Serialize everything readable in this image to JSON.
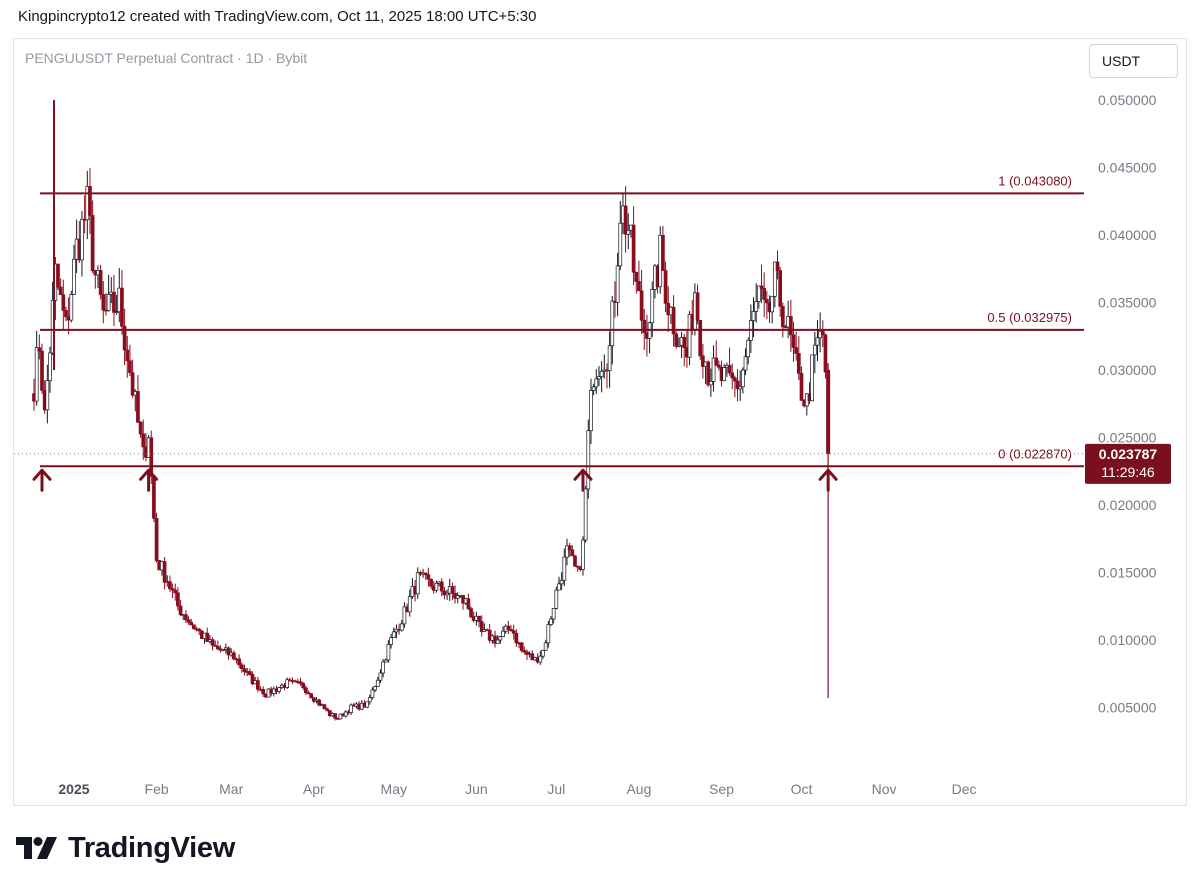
{
  "header": {
    "text": "Kingpincrypto12 created with TradingView.com, Oct 11, 2025 18:00 UTC+5:30"
  },
  "symbol_title": "PENGUUSDT Perpetual Contract · 1D · Bybit",
  "currency_label": "USDT",
  "brand": {
    "name": "TradingView",
    "logo_icon": "tradingview-logo-icon"
  },
  "colors": {
    "level_line": "#7b0f1e",
    "candle_up": "#ffffff",
    "candle_down": "#880e1f",
    "candle_outline": "#131722",
    "axis_text": "#787b86",
    "price_label_bg": "#7b0f1e"
  },
  "chart_data": {
    "type": "candlestick",
    "title": "PENGUUSDT Perpetual Contract · 1D · Bybit",
    "ylim": [
      0.0,
      0.052
    ],
    "y_ticks": [
      "0.050000",
      "0.045000",
      "0.040000",
      "0.035000",
      "0.030000",
      "0.025000",
      "0.020000",
      "0.015000",
      "0.010000",
      "0.005000"
    ],
    "x_ticks": [
      "2025",
      "Feb",
      "Mar",
      "Apr",
      "May",
      "Jun",
      "Jul",
      "Aug",
      "Sep",
      "Oct",
      "Nov",
      "Dec"
    ],
    "x_domain": [
      "2024-12-17",
      "2025-12-31"
    ],
    "x_tick_dates": [
      "2025-01-01",
      "2025-02-01",
      "2025-03-01",
      "2025-04-01",
      "2025-05-01",
      "2025-06-01",
      "2025-07-01",
      "2025-08-01",
      "2025-09-01",
      "2025-10-01",
      "2025-11-01",
      "2025-12-01"
    ],
    "grid": false,
    "levels": [
      {
        "label": "1 (0.043080)",
        "value": 0.04308
      },
      {
        "label": "0.5 (0.032975)",
        "value": 0.032975
      },
      {
        "label": "0 (0.022870)",
        "value": 0.02287
      }
    ],
    "current_price": {
      "value": 0.023787,
      "label": "0.023787",
      "countdown": "11:29:46"
    },
    "support_arrows": [
      "2024-12-19",
      "2025-01-29",
      "2025-07-11",
      "2025-10-11"
    ],
    "anchors": [
      [
        "2024-12-17",
        0.029
      ],
      [
        "2024-12-19",
        0.032
      ],
      [
        "2024-12-21",
        0.0265
      ],
      [
        "2024-12-25",
        0.037
      ],
      [
        "2024-12-29",
        0.033
      ],
      [
        "2025-01-02",
        0.039
      ],
      [
        "2025-01-06",
        0.042
      ],
      [
        "2025-01-09",
        0.037
      ],
      [
        "2025-01-12",
        0.034
      ],
      [
        "2025-01-18",
        0.035
      ],
      [
        "2025-01-22",
        0.03
      ],
      [
        "2025-01-25",
        0.026
      ],
      [
        "2025-01-27",
        0.0235
      ],
      [
        "2025-01-29",
        0.0255
      ],
      [
        "2025-01-30",
        0.022
      ],
      [
        "2025-02-01",
        0.016
      ],
      [
        "2025-02-05",
        0.0145
      ],
      [
        "2025-02-09",
        0.0125
      ],
      [
        "2025-02-14",
        0.0112
      ],
      [
        "2025-02-22",
        0.0095
      ],
      [
        "2025-03-02",
        0.0088
      ],
      [
        "2025-03-08",
        0.0072
      ],
      [
        "2025-03-14",
        0.006
      ],
      [
        "2025-03-22",
        0.0068
      ],
      [
        "2025-03-28",
        0.0066
      ],
      [
        "2025-04-02",
        0.0055
      ],
      [
        "2025-04-07",
        0.0045
      ],
      [
        "2025-04-10",
        0.0042
      ],
      [
        "2025-04-15",
        0.005
      ],
      [
        "2025-04-21",
        0.0052
      ],
      [
        "2025-04-25",
        0.0072
      ],
      [
        "2025-04-30",
        0.01
      ],
      [
        "2025-05-05",
        0.012
      ],
      [
        "2025-05-10",
        0.0145
      ],
      [
        "2025-05-16",
        0.014
      ],
      [
        "2025-05-22",
        0.0135
      ],
      [
        "2025-05-28",
        0.0128
      ],
      [
        "2025-06-03",
        0.0105
      ],
      [
        "2025-06-09",
        0.01
      ],
      [
        "2025-06-14",
        0.011
      ],
      [
        "2025-06-18",
        0.0092
      ],
      [
        "2025-06-23",
        0.0085
      ],
      [
        "2025-06-26",
        0.0092
      ],
      [
        "2025-07-01",
        0.0135
      ],
      [
        "2025-07-05",
        0.0165
      ],
      [
        "2025-07-09",
        0.0148
      ],
      [
        "2025-07-11",
        0.017
      ],
      [
        "2025-07-13",
        0.025
      ],
      [
        "2025-07-15",
        0.03
      ],
      [
        "2025-07-18",
        0.031
      ],
      [
        "2025-07-21",
        0.0315
      ],
      [
        "2025-07-23",
        0.036
      ],
      [
        "2025-07-25",
        0.042
      ],
      [
        "2025-07-28",
        0.0405
      ],
      [
        "2025-07-31",
        0.036
      ],
      [
        "2025-08-03",
        0.033
      ],
      [
        "2025-08-06",
        0.035
      ],
      [
        "2025-08-09",
        0.0385
      ],
      [
        "2025-08-12",
        0.035
      ],
      [
        "2025-08-15",
        0.033
      ],
      [
        "2025-08-19",
        0.031
      ],
      [
        "2025-08-22",
        0.036
      ],
      [
        "2025-08-24",
        0.0325
      ],
      [
        "2025-08-27",
        0.03
      ],
      [
        "2025-08-31",
        0.0295
      ],
      [
        "2025-09-04",
        0.029
      ],
      [
        "2025-09-08",
        0.029
      ],
      [
        "2025-09-12",
        0.033
      ],
      [
        "2025-09-15",
        0.0355
      ],
      [
        "2025-09-18",
        0.0335
      ],
      [
        "2025-09-21",
        0.0365
      ],
      [
        "2025-09-24",
        0.0345
      ],
      [
        "2025-09-27",
        0.032
      ],
      [
        "2025-09-30",
        0.029
      ],
      [
        "2025-10-03",
        0.0275
      ],
      [
        "2025-10-05",
        0.03
      ],
      [
        "2025-10-07",
        0.032
      ],
      [
        "2025-10-09",
        0.0325
      ],
      [
        "2025-10-10",
        0.03
      ]
    ],
    "final_candle": {
      "date": "2025-10-11",
      "open": 0.03,
      "high": 0.0305,
      "low": 0.0057,
      "close": 0.023787
    }
  }
}
